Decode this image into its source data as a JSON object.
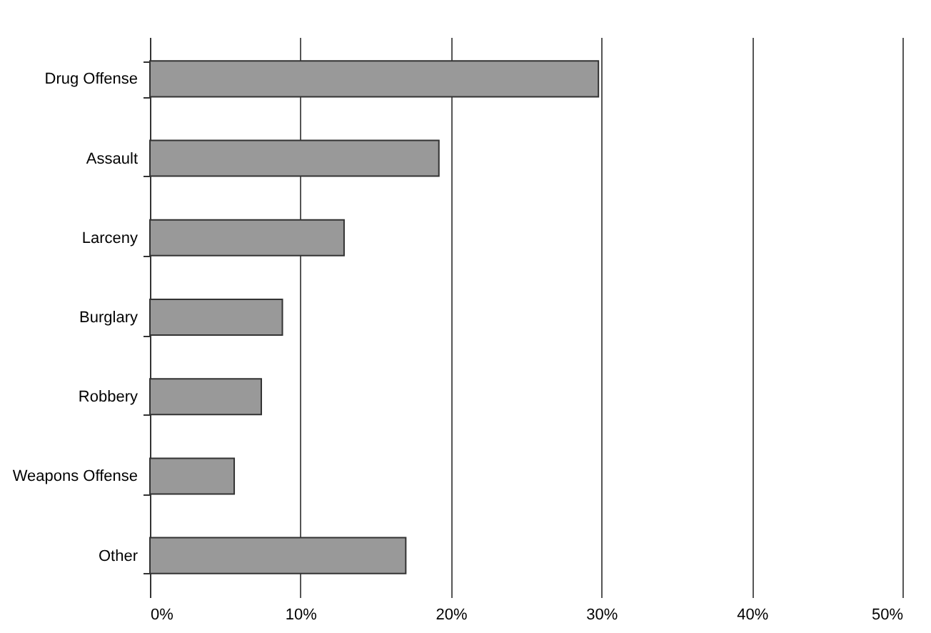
{
  "chart_data": {
    "type": "bar",
    "orientation": "horizontal",
    "categories": [
      "Drug Offense",
      "Assault",
      "Larceny",
      "Burglary",
      "Robbery",
      "Weapons Offense",
      "Other"
    ],
    "values": [
      29.8,
      19.2,
      12.9,
      8.8,
      7.4,
      5.6,
      17
    ],
    "color": "#999999",
    "xlim": [
      0,
      50
    ],
    "xticks": [
      {
        "value": 0,
        "label": "0%"
      },
      {
        "value": 10,
        "label": "10%"
      },
      {
        "value": 20,
        "label": "20%"
      },
      {
        "value": 30,
        "label": "30%"
      },
      {
        "value": 40,
        "label": "40%"
      },
      {
        "value": 50,
        "label": "50%"
      }
    ],
    "grid": "x"
  }
}
